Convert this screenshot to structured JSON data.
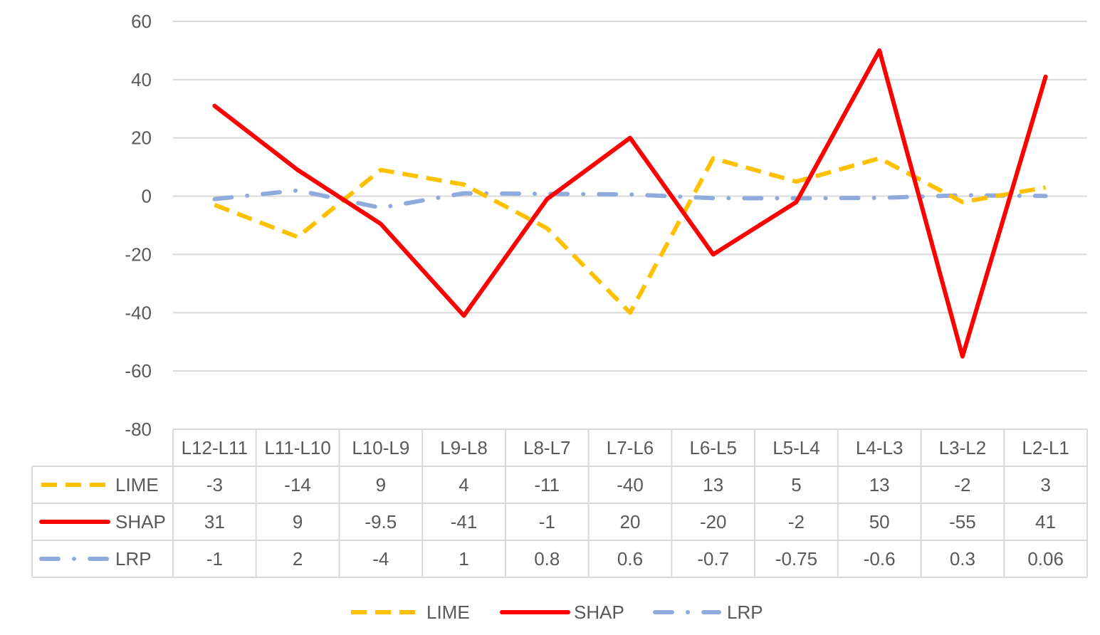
{
  "chart_data": {
    "type": "line",
    "title": "",
    "xlabel": "",
    "ylabel": "",
    "ylim": [
      -80,
      60
    ],
    "yticks": [
      "60",
      "40",
      "20",
      "0",
      "-20",
      "-40",
      "-60",
      "-80"
    ],
    "grid": true,
    "data_table": true,
    "legend_position": "bottom",
    "categories": [
      "L12-L11",
      "L11-L10",
      "L10-L9",
      "L9-L8",
      "L8-L7",
      "L7-L6",
      "L6-L5",
      "L5-L4",
      "L4-L3",
      "L3-L2",
      "L2-L1"
    ],
    "series": [
      {
        "name": "LIME",
        "color": "#FFC000",
        "style": "dashed",
        "values": [
          -3,
          -14,
          9,
          4,
          -11,
          -40,
          13,
          5,
          13,
          -2,
          3
        ],
        "labels": [
          "-3",
          "-14",
          "9",
          "4",
          "-11",
          "-40",
          "13",
          "5",
          "13",
          "-2",
          "3"
        ]
      },
      {
        "name": "SHAP",
        "color": "#FF0000",
        "style": "solid",
        "values": [
          31,
          9,
          -9.5,
          -41,
          -1,
          20,
          -20,
          -2,
          50,
          -55,
          41
        ],
        "labels": [
          "31",
          "9",
          "-9.5",
          "-41",
          "-1",
          "20",
          "-20",
          "-2",
          "50",
          "-55",
          "41"
        ]
      },
      {
        "name": "LRP",
        "color": "#8FAADC",
        "style": "long-dash-dot",
        "values": [
          -1,
          2,
          -4,
          1,
          0.8,
          0.6,
          -0.7,
          -0.75,
          -0.6,
          0.3,
          0.06
        ],
        "labels": [
          "-1",
          "2",
          "-4",
          "1",
          "0.8",
          "0.6",
          "-0.7",
          "-0.75",
          "-0.6",
          "0.3",
          "0.06"
        ]
      }
    ]
  }
}
